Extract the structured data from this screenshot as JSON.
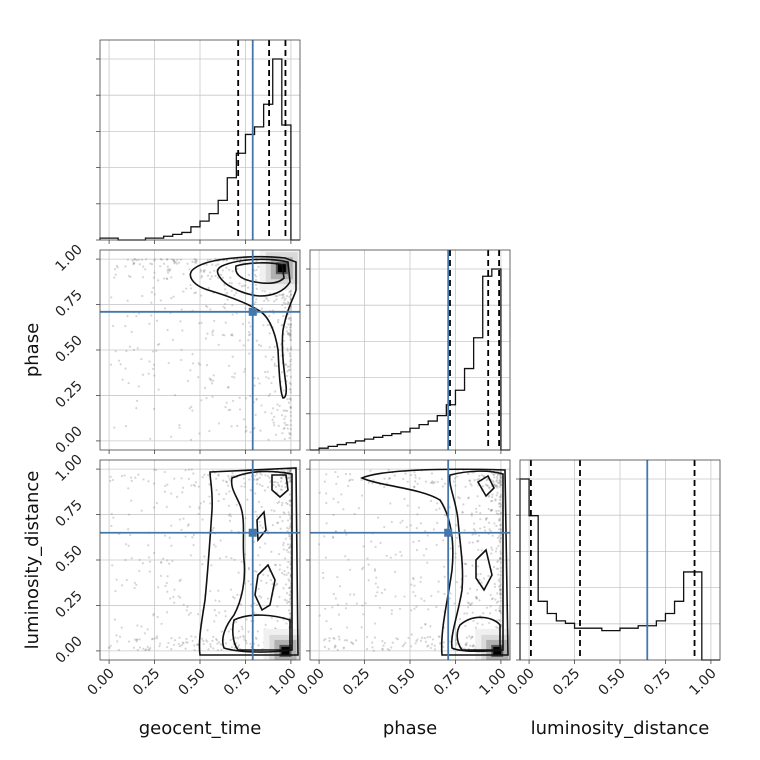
{
  "chart_data": {
    "type": "corner",
    "params": [
      "geocent_time",
      "phase",
      "luminosity_distance"
    ],
    "axis_labels": {
      "x": [
        "geocent_time",
        "phase",
        "luminosity_distance"
      ],
      "y": [
        "phase",
        "luminosity_distance"
      ]
    },
    "tick_values": [
      0.0,
      0.25,
      0.5,
      0.75,
      1.0
    ],
    "tick_labels": [
      "0.00",
      "0.25",
      "0.50",
      "0.75",
      "1.00"
    ],
    "ranges": [
      [
        -0.05,
        1.05
      ],
      [
        -0.05,
        1.05
      ],
      [
        -0.05,
        1.05
      ]
    ],
    "truths": [
      0.79,
      0.71,
      0.65
    ],
    "truth_color": "#4477aa",
    "grid": true,
    "histograms": [
      {
        "param": "geocent_time",
        "bin_edges": [
          -0.05,
          0.0,
          0.05,
          0.1,
          0.15,
          0.2,
          0.25,
          0.3,
          0.35,
          0.4,
          0.45,
          0.5,
          0.55,
          0.6,
          0.65,
          0.7,
          0.75,
          0.8,
          0.85,
          0.9,
          0.95,
          1.0,
          1.05
        ],
        "counts": [
          0.01,
          0.01,
          0.0,
          0.0,
          0.0,
          0.01,
          0.01,
          0.02,
          0.03,
          0.04,
          0.07,
          0.1,
          0.14,
          0.21,
          0.33,
          0.46,
          0.56,
          0.6,
          0.72,
          0.96,
          0.61,
          0.0
        ],
        "quantiles": [
          0.71,
          0.88,
          0.97
        ]
      },
      {
        "param": "phase",
        "bin_edges": [
          -0.05,
          0.0,
          0.05,
          0.1,
          0.15,
          0.2,
          0.25,
          0.3,
          0.35,
          0.4,
          0.45,
          0.5,
          0.55,
          0.6,
          0.65,
          0.7,
          0.75,
          0.8,
          0.85,
          0.9,
          0.95,
          1.0,
          1.05
        ],
        "counts": [
          0.0,
          0.01,
          0.02,
          0.03,
          0.04,
          0.05,
          0.06,
          0.07,
          0.08,
          0.09,
          0.1,
          0.12,
          0.14,
          0.16,
          0.19,
          0.25,
          0.33,
          0.45,
          0.62,
          0.96,
          1.0,
          0.0
        ],
        "quantiles": [
          0.72,
          0.93,
          0.99
        ]
      },
      {
        "param": "luminosity_distance",
        "bin_edges": [
          -0.05,
          0.0,
          0.05,
          0.1,
          0.15,
          0.2,
          0.25,
          0.3,
          0.35,
          0.4,
          0.45,
          0.5,
          0.55,
          0.6,
          0.65,
          0.7,
          0.75,
          0.8,
          0.85,
          0.9,
          0.95,
          1.0,
          1.05
        ],
        "counts": [
          0.74,
          0.59,
          0.24,
          0.19,
          0.16,
          0.15,
          0.13,
          0.13,
          0.13,
          0.12,
          0.12,
          0.13,
          0.13,
          0.14,
          0.14,
          0.16,
          0.19,
          0.24,
          0.36,
          0.36,
          0.0,
          0.0
        ],
        "quantiles": [
          0.01,
          0.28,
          0.91
        ]
      }
    ],
    "pairs": [
      {
        "x": "geocent_time",
        "y": "phase",
        "density_peak": [
          0.95,
          0.95
        ],
        "truth": [
          0.79,
          0.71
        ]
      },
      {
        "x": "geocent_time",
        "y": "luminosity_distance",
        "density_peak": [
          0.97,
          0.0
        ],
        "truth": [
          0.79,
          0.65
        ]
      },
      {
        "x": "phase",
        "y": "luminosity_distance",
        "density_peak": [
          0.98,
          0.0
        ],
        "truth": [
          0.71,
          0.65
        ]
      }
    ]
  }
}
